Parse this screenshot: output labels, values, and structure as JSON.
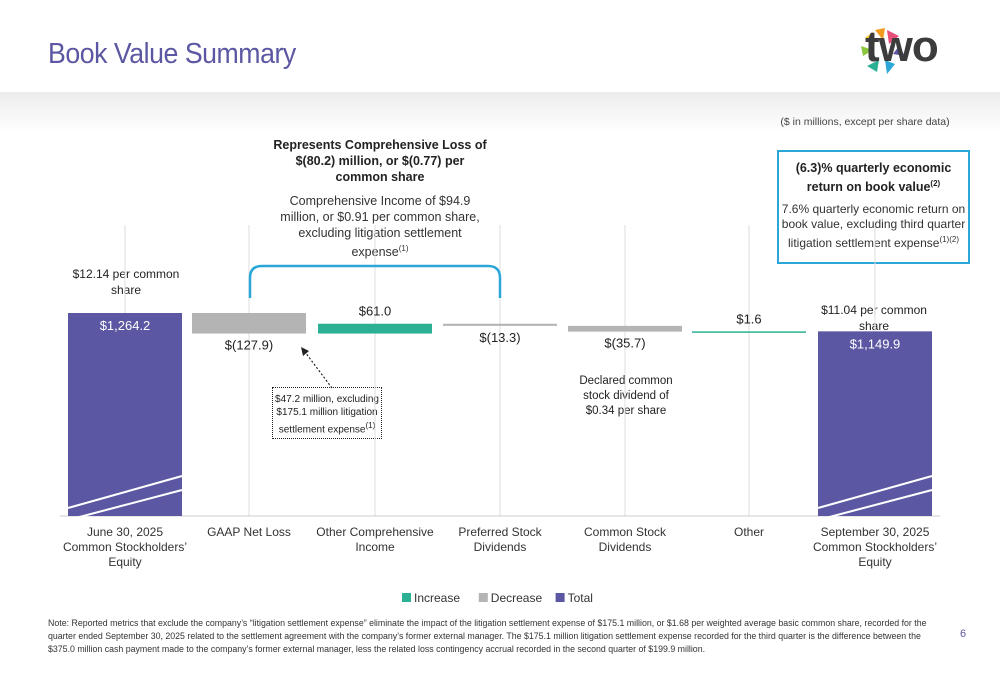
{
  "page": {
    "title": "Book Value Summary",
    "logo_text": "two",
    "units_note": "($ in millions, except per share data)",
    "page_number": "6",
    "footnote": "Note: Reported metrics that exclude the company’s “litigation settlement expense” eliminate the impact of the litigation settlement expense of $175.1 million, or $1.68 per weighted average basic common share, recorded for the quarter ended September 30, 2025 related to the settlement agreement with the company’s former external manager. The $175.1 million litigation settlement expense recorded for the third quarter is the difference between the $375.0 million cash payment made to the company’s former external manager, less the related loss contingency accrual recorded in the second quarter of $199.9 million."
  },
  "callout": {
    "head": "(6.3)% quarterly economic return on book value",
    "head_sup": "(2)",
    "sub": "7.6% quarterly economic return on book value, excluding third quarter litigation settlement expense",
    "sub_sup": "(1)(2)"
  },
  "comprehensive": {
    "head": "Represents Comprehensive Loss of $(80.2) million, or $(0.77) per common share",
    "sub": "Comprehensive Income of $94.9 million, or $0.91 per common share, excluding litigation settlement expense",
    "sub_sup": "(1)"
  },
  "annotations": {
    "start_per_share": "$12.14 per common share",
    "end_per_share": "$11.04 per common share",
    "gaap_box": "$47.2 million, excluding $175.1 million litigation settlement expense",
    "gaap_box_sup": "(1)",
    "dividend_note": "Declared common stock dividend of $0.34 per share"
  },
  "colors": {
    "increase": "#2bb094",
    "decrease": "#b4b4b4",
    "total": "#5b57a2",
    "accent": "#2aa7d8",
    "title": "#5b57a2"
  },
  "chart_data": {
    "type": "bar",
    "subtype": "waterfall",
    "title": "Book Value Summary",
    "ylim": [
      0,
      1264.2
    ],
    "categories": [
      "June 30, 2025 Common Stockholders’ Equity",
      "GAAP Net Loss",
      "Other Comprehensive Income",
      "Preferred Stock Dividends",
      "Common Stock Dividends",
      "Other",
      "September 30, 2025 Common Stockholders’ Equity"
    ],
    "axis_labels": [
      [
        "June 30, 2025",
        "Common Stockholders’",
        "Equity"
      ],
      [
        "GAAP Net Loss"
      ],
      [
        "Other Comprehensive",
        "Income"
      ],
      [
        "Preferred Stock",
        "Dividends"
      ],
      [
        "Common Stock",
        "Dividends"
      ],
      [
        "Other"
      ],
      [
        "September 30, 2025",
        "Common Stockholders’",
        "Equity"
      ]
    ],
    "values": [
      1264.2,
      -127.9,
      61.0,
      -13.3,
      -35.7,
      1.6,
      1149.9
    ],
    "kinds": [
      "total",
      "decrease",
      "increase",
      "decrease",
      "decrease",
      "increase",
      "total"
    ],
    "value_labels": [
      "$1,264.2",
      "$(127.9)",
      "$61.0",
      "$(13.3)",
      "$(35.7)",
      "$1.6",
      "$1,149.9"
    ],
    "legend": [
      {
        "name": "Increase",
        "kind": "increase"
      },
      {
        "name": "Decrease",
        "kind": "decrease"
      },
      {
        "name": "Total",
        "kind": "total"
      }
    ]
  }
}
